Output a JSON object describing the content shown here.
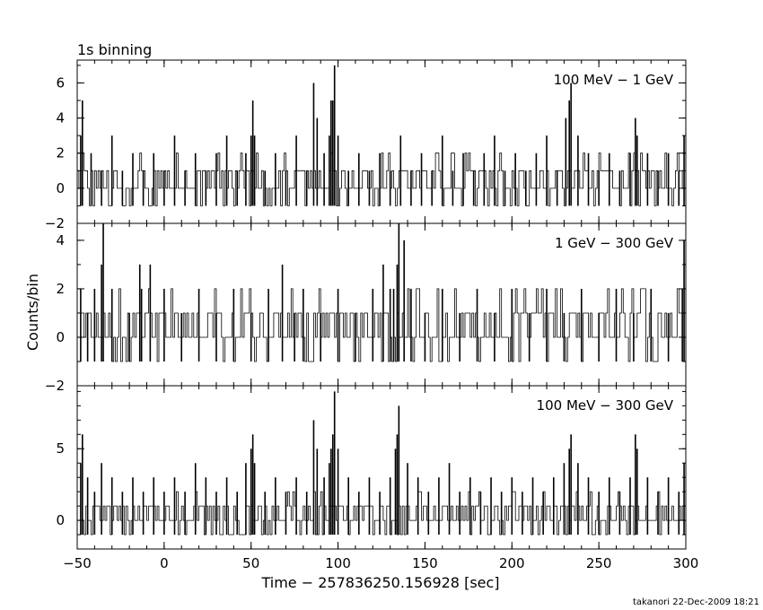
{
  "chart_data": {
    "type": "line",
    "title": "1s binning",
    "xlabel": "Time − 257836250.156928 [sec]",
    "ylabel": "Counts/bin",
    "footer": "takanori 22-Dec-2009 18:21",
    "xlim": [
      -50,
      300
    ],
    "xticks": [
      -50,
      0,
      50,
      100,
      150,
      200,
      250,
      300
    ],
    "xtick_labels": [
      "−50",
      "0",
      "50",
      "100",
      "150",
      "200",
      "250",
      "300"
    ],
    "grid": false,
    "panels": [
      {
        "name": "100 MeV − 1 GeV",
        "ylim": [
          -2,
          7.3
        ],
        "yticks": [
          -2,
          0,
          2,
          4,
          6
        ],
        "ytick_labels": [
          "−2",
          "0",
          "2",
          "4",
          "6"
        ],
        "x": [
          -48,
          -47,
          -42,
          -36,
          -30,
          -24,
          -18,
          -12,
          -6,
          0,
          6,
          12,
          18,
          24,
          30,
          36,
          42,
          47,
          50,
          51,
          52,
          58,
          64,
          70,
          76,
          82,
          86,
          88,
          92,
          95,
          96,
          97,
          98,
          100,
          106,
          112,
          118,
          124,
          130,
          136,
          142,
          148,
          154,
          160,
          166,
          172,
          178,
          184,
          190,
          196,
          202,
          208,
          214,
          220,
          226,
          231,
          233,
          234,
          238,
          244,
          250,
          256,
          262,
          268,
          271,
          272,
          278,
          284,
          290,
          296,
          299
        ],
        "values": [
          3,
          5,
          2,
          1,
          3,
          1,
          2,
          1,
          2,
          1,
          3,
          1,
          2,
          1,
          2,
          3,
          1,
          2,
          3,
          5,
          3,
          1,
          2,
          1,
          3,
          1,
          6,
          4,
          2,
          3,
          5,
          5,
          7,
          3,
          1,
          2,
          1,
          2,
          1,
          3,
          1,
          2,
          1,
          3,
          1,
          2,
          1,
          2,
          3,
          1,
          2,
          1,
          2,
          3,
          1,
          4,
          5,
          6,
          3,
          2,
          1,
          2,
          1,
          2,
          4,
          3,
          2,
          1,
          2,
          1,
          3
        ],
        "fluctuation_min": -1
      },
      {
        "name": "1 GeV − 300 GeV",
        "ylim": [
          -2,
          4.7
        ],
        "yticks": [
          -2,
          0,
          2,
          4
        ],
        "ytick_labels": [
          "−2",
          "0",
          "2",
          "4"
        ],
        "x": [
          -48,
          -44,
          -40,
          -36,
          -35,
          -30,
          -20,
          -14,
          -13,
          -8,
          0,
          10,
          20,
          30,
          40,
          50,
          60,
          68,
          75,
          80,
          90,
          100,
          110,
          120,
          126,
          130,
          132,
          134,
          135,
          138,
          142,
          150,
          160,
          170,
          180,
          190,
          200,
          210,
          220,
          230,
          240,
          250,
          260,
          270,
          280,
          290,
          298,
          299
        ],
        "values": [
          2,
          1,
          2,
          3,
          5,
          2,
          1,
          3,
          2,
          3,
          2,
          1,
          2,
          1,
          2,
          1,
          2,
          3,
          1,
          2,
          1,
          2,
          1,
          2,
          3,
          2,
          2,
          3,
          5,
          4,
          2,
          1,
          2,
          1,
          2,
          1,
          2,
          1,
          2,
          1,
          2,
          1,
          2,
          1,
          2,
          1,
          2,
          4
        ],
        "fluctuation_min": -1
      },
      {
        "name": "100 MeV − 300 GeV",
        "ylim": [
          -2,
          9.4
        ],
        "yticks": [
          0,
          5
        ],
        "ytick_labels": [
          "0",
          "5"
        ],
        "x": [
          -48,
          -47,
          -44,
          -40,
          -36,
          -30,
          -24,
          -18,
          -12,
          -6,
          0,
          6,
          12,
          18,
          24,
          30,
          36,
          42,
          47,
          50,
          51,
          52,
          58,
          64,
          70,
          76,
          82,
          86,
          88,
          92,
          95,
          96,
          97,
          98,
          100,
          106,
          112,
          118,
          124,
          130,
          133,
          134,
          135,
          140,
          146,
          152,
          158,
          164,
          170,
          176,
          182,
          188,
          194,
          200,
          206,
          212,
          218,
          224,
          230,
          233,
          234,
          238,
          244,
          250,
          256,
          262,
          268,
          271,
          272,
          278,
          284,
          290,
          296,
          299
        ],
        "values": [
          4,
          6,
          3,
          2,
          4,
          3,
          2,
          3,
          2,
          3,
          2,
          3,
          2,
          4,
          3,
          2,
          3,
          2,
          4,
          5,
          6,
          4,
          2,
          3,
          2,
          3,
          2,
          7,
          5,
          3,
          4,
          5,
          6,
          9,
          5,
          3,
          2,
          3,
          2,
          3,
          5,
          6,
          8,
          4,
          3,
          2,
          3,
          4,
          2,
          3,
          2,
          3,
          2,
          3,
          2,
          3,
          2,
          3,
          4,
          5,
          6,
          4,
          3,
          2,
          3,
          2,
          3,
          6,
          5,
          3,
          2,
          3,
          2,
          4
        ],
        "fluctuation_min": -1
      }
    ]
  }
}
